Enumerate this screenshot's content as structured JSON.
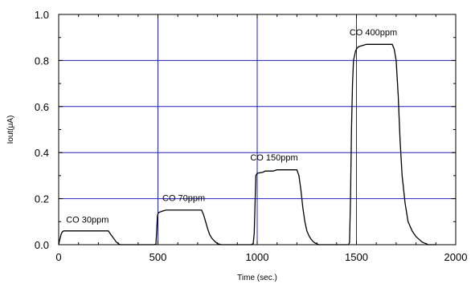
{
  "chart_data": {
    "type": "line",
    "title": "",
    "xlabel": "Time (sec.)",
    "ylabel": "Iout(μA)",
    "xlim": [
      0,
      2000
    ],
    "ylim": [
      0,
      1.0
    ],
    "x_ticks": [
      0,
      500,
      1000,
      1500,
      2000
    ],
    "x_tick_labels": [
      "0",
      "500",
      "1000",
      "1500",
      "2000"
    ],
    "y_ticks": [
      0.0,
      0.2,
      0.4,
      0.6,
      0.8,
      1.0
    ],
    "y_tick_labels": [
      "0.0",
      "0.2",
      "0.4",
      "0.6",
      "0.8",
      "1.0"
    ],
    "vertical_gridlines": [
      500,
      1000,
      1500
    ],
    "horizontal_gridlines": [
      0.2,
      0.4,
      0.6,
      0.8
    ],
    "grid_color": "#2020c0",
    "line_color": "#000000",
    "series": [
      {
        "x": [
          0,
          5,
          12,
          18,
          25,
          35,
          250,
          262,
          275,
          290,
          300,
          305,
          310,
          480,
          490,
          493,
          497,
          500,
          505,
          520,
          540,
          720,
          730,
          740,
          750,
          760,
          770,
          780,
          790,
          800,
          820,
          970,
          980,
          985,
          990,
          993,
          1000,
          1030,
          1040,
          1080,
          1100,
          1200,
          1210,
          1220,
          1230,
          1240,
          1250,
          1260,
          1270,
          1280,
          1290,
          1310,
          1460,
          1465,
          1470,
          1475,
          1480,
          1485,
          1495,
          1500,
          1510,
          1530,
          1550,
          1650,
          1680,
          1690,
          1700,
          1710,
          1720,
          1730,
          1745,
          1760,
          1780,
          1800,
          1820,
          1830,
          1845,
          1855,
          1860,
          1880,
          1900
        ],
        "y": [
          0.0,
          0.02,
          0.045,
          0.055,
          0.06,
          0.06,
          0.06,
          0.045,
          0.03,
          0.012,
          0.005,
          0.002,
          0.0,
          0.0,
          0.002,
          0.05,
          0.12,
          0.135,
          0.14,
          0.145,
          0.15,
          0.15,
          0.13,
          0.1,
          0.07,
          0.045,
          0.03,
          0.02,
          0.012,
          0.005,
          0.0,
          0.0,
          0.005,
          0.05,
          0.2,
          0.3,
          0.31,
          0.315,
          0.32,
          0.32,
          0.325,
          0.325,
          0.3,
          0.24,
          0.16,
          0.1,
          0.06,
          0.04,
          0.025,
          0.015,
          0.008,
          0.0,
          0.0,
          0.01,
          0.2,
          0.5,
          0.7,
          0.8,
          0.84,
          0.85,
          0.86,
          0.865,
          0.87,
          0.87,
          0.87,
          0.85,
          0.8,
          0.65,
          0.45,
          0.3,
          0.18,
          0.1,
          0.06,
          0.035,
          0.02,
          0.012,
          0.006,
          0.003,
          0.0,
          0.0,
          0.0
        ]
      }
    ],
    "annotations": [
      {
        "text": "CO 30ppm",
        "x": 145,
        "y": 0.095
      },
      {
        "text": "CO 70ppm",
        "x": 630,
        "y": 0.19
      },
      {
        "text": "CO 150ppm",
        "x": 1085,
        "y": 0.365
      },
      {
        "text": "CO 400ppm",
        "x": 1585,
        "y": 0.91
      }
    ]
  }
}
